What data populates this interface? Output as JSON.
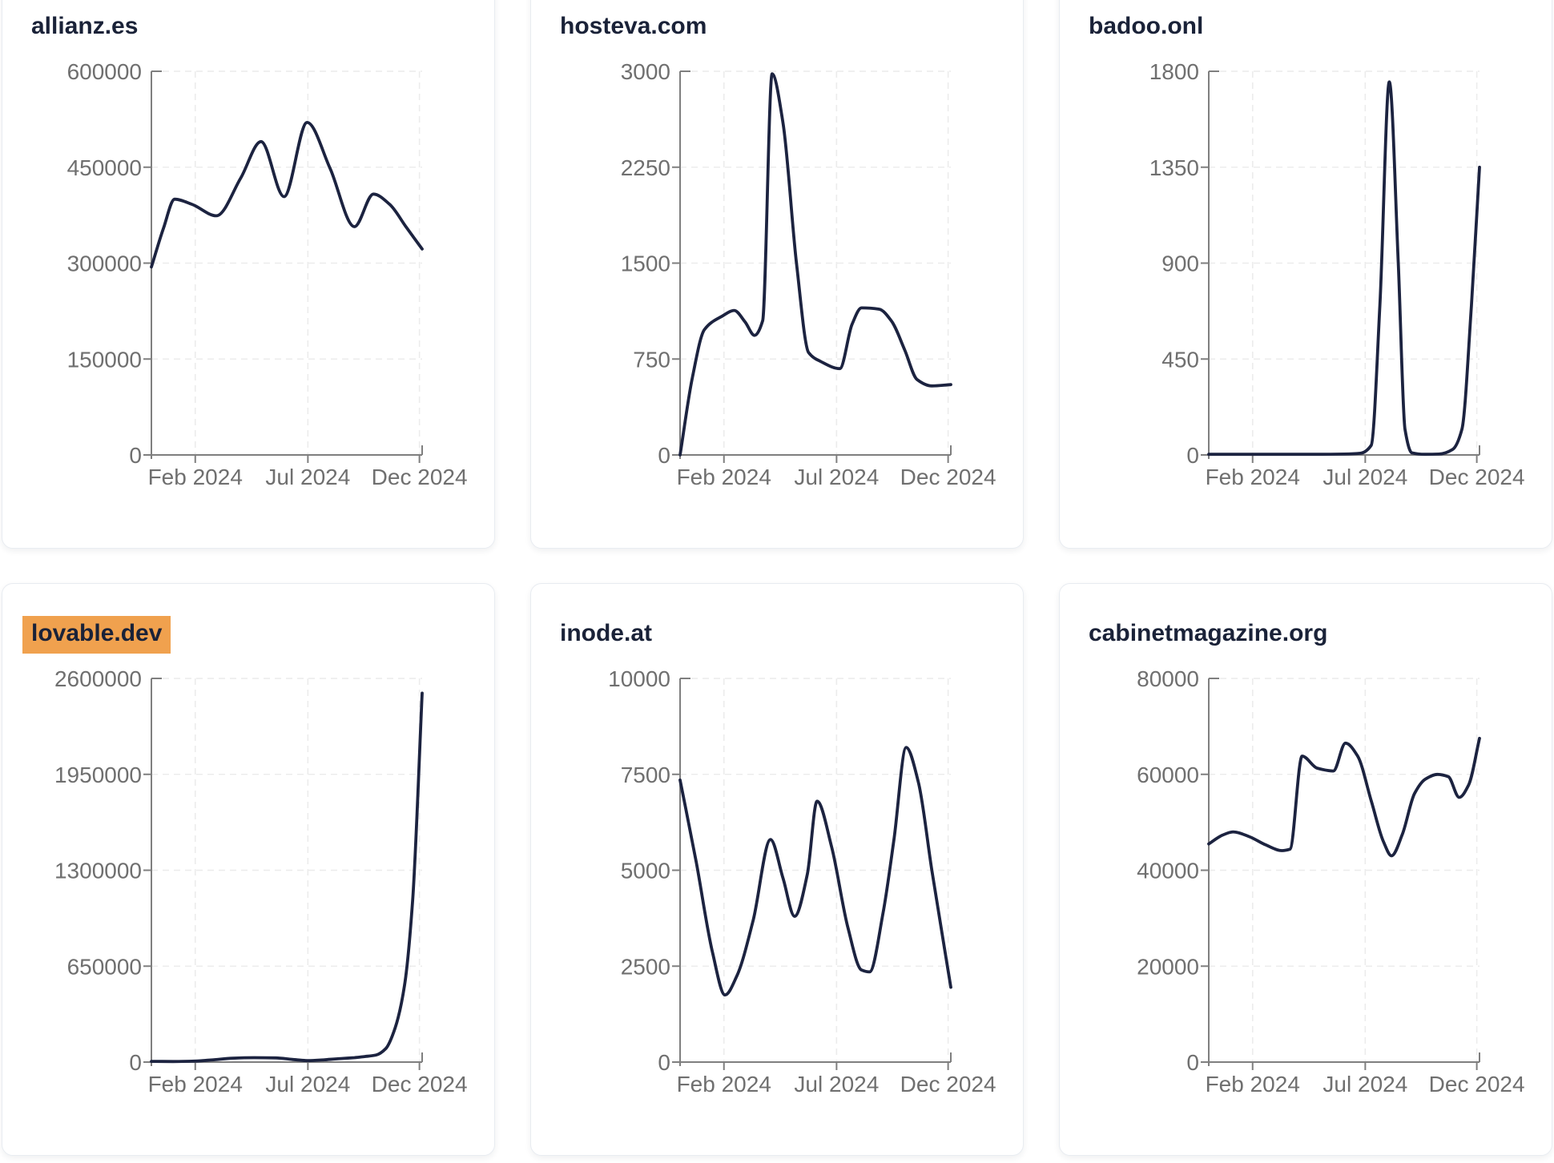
{
  "page": {
    "background": "#ffffff",
    "description": "Dashboard grid of six domain traffic line charts, Jan 2024 - Dec 2024"
  },
  "colors": {
    "line": "#1c2340",
    "title": "#1a2238",
    "tick_label": "#6f6f6f",
    "axis": "#7f7f7f",
    "grid": "#ececec",
    "card_border": "#e8ecf1",
    "card_background": "#ffffff",
    "highlight_background": "#f0a14e"
  },
  "x_axis": {
    "domain": "Jan 2024 - Dec 2024",
    "ticks": [
      {
        "label": "Feb 2024",
        "t": 0.162
      },
      {
        "label": "Jul 2024",
        "t": 0.578
      },
      {
        "label": "Dec 2024",
        "t": 0.99
      }
    ]
  },
  "chart_data": [
    {
      "type": "line",
      "title": "allianz.es",
      "highlighted": false,
      "ylim": [
        0,
        600000
      ],
      "y_ticks": [
        600000,
        450000,
        300000,
        150000,
        0
      ],
      "x_tick_labels": [
        "Feb 2024",
        "Jul 2024",
        "Dec 2024"
      ],
      "grid": true,
      "points": [
        [
          0,
          294000
        ],
        [
          0.045,
          355000
        ],
        [
          0.086,
          400000
        ],
        [
          0.15,
          392000
        ],
        [
          0.24,
          374000
        ],
        [
          0.33,
          433000
        ],
        [
          0.405,
          490000
        ],
        [
          0.49,
          404000
        ],
        [
          0.575,
          520000
        ],
        [
          0.66,
          448000
        ],
        [
          0.75,
          357000
        ],
        [
          0.82,
          408000
        ],
        [
          0.88,
          392000
        ],
        [
          0.94,
          357000
        ],
        [
          1,
          322000
        ]
      ]
    },
    {
      "type": "line",
      "title": "hosteva.com",
      "highlighted": false,
      "ylim": [
        0,
        3000
      ],
      "y_ticks": [
        3000,
        2250,
        1500,
        750,
        0
      ],
      "x_tick_labels": [
        "Feb 2024",
        "Jul 2024",
        "Dec 2024"
      ],
      "grid": true,
      "points": [
        [
          0,
          0
        ],
        [
          0.045,
          600
        ],
        [
          0.09,
          980
        ],
        [
          0.155,
          1085
        ],
        [
          0.2,
          1130
        ],
        [
          0.24,
          1040
        ],
        [
          0.275,
          935
        ],
        [
          0.305,
          1050
        ],
        [
          0.34,
          2980
        ],
        [
          0.38,
          2600
        ],
        [
          0.43,
          1500
        ],
        [
          0.475,
          800
        ],
        [
          0.52,
          730
        ],
        [
          0.59,
          675
        ],
        [
          0.635,
          1020
        ],
        [
          0.67,
          1150
        ],
        [
          0.735,
          1140
        ],
        [
          0.78,
          1050
        ],
        [
          0.83,
          820
        ],
        [
          0.875,
          590
        ],
        [
          0.93,
          540
        ],
        [
          1,
          550
        ]
      ]
    },
    {
      "type": "line",
      "title": "badoo.onl",
      "highlighted": false,
      "ylim": [
        0,
        1800
      ],
      "y_ticks": [
        1800,
        1350,
        900,
        450,
        0
      ],
      "x_tick_labels": [
        "Feb 2024",
        "Jul 2024",
        "Dec 2024"
      ],
      "grid": true,
      "points": [
        [
          0,
          3
        ],
        [
          0.1,
          3
        ],
        [
          0.2,
          3
        ],
        [
          0.3,
          3
        ],
        [
          0.4,
          3
        ],
        [
          0.5,
          4
        ],
        [
          0.56,
          8
        ],
        [
          0.6,
          45
        ],
        [
          0.632,
          700
        ],
        [
          0.667,
          1750
        ],
        [
          0.7,
          900
        ],
        [
          0.725,
          120
        ],
        [
          0.75,
          10
        ],
        [
          0.8,
          3
        ],
        [
          0.85,
          4
        ],
        [
          0.9,
          25
        ],
        [
          0.935,
          120
        ],
        [
          0.97,
          700
        ],
        [
          1,
          1350
        ]
      ]
    },
    {
      "type": "line",
      "title": "lovable.dev",
      "highlighted": true,
      "ylim": [
        0,
        2600000
      ],
      "y_ticks": [
        2600000,
        1950000,
        1300000,
        650000,
        0
      ],
      "x_tick_labels": [
        "Feb 2024",
        "Jul 2024",
        "Dec 2024"
      ],
      "grid": true,
      "points": [
        [
          0,
          5000
        ],
        [
          0.08,
          4000
        ],
        [
          0.15,
          6000
        ],
        [
          0.22,
          14000
        ],
        [
          0.3,
          26000
        ],
        [
          0.38,
          30000
        ],
        [
          0.46,
          28000
        ],
        [
          0.52,
          18000
        ],
        [
          0.58,
          10000
        ],
        [
          0.64,
          16000
        ],
        [
          0.7,
          24000
        ],
        [
          0.75,
          30000
        ],
        [
          0.79,
          38000
        ],
        [
          0.83,
          48000
        ],
        [
          0.865,
          90000
        ],
        [
          0.9,
          230000
        ],
        [
          0.935,
          520000
        ],
        [
          0.965,
          1100000
        ],
        [
          1,
          2500000
        ]
      ]
    },
    {
      "type": "line",
      "title": "inode.at",
      "highlighted": false,
      "ylim": [
        0,
        10000
      ],
      "y_ticks": [
        10000,
        7500,
        5000,
        2500,
        0
      ],
      "x_tick_labels": [
        "Feb 2024",
        "Jul 2024",
        "Dec 2024"
      ],
      "grid": true,
      "points": [
        [
          0,
          7350
        ],
        [
          0.06,
          5200
        ],
        [
          0.12,
          2850
        ],
        [
          0.166,
          1750
        ],
        [
          0.21,
          2250
        ],
        [
          0.27,
          3700
        ],
        [
          0.334,
          5800
        ],
        [
          0.38,
          4800
        ],
        [
          0.423,
          3800
        ],
        [
          0.47,
          4900
        ],
        [
          0.506,
          6800
        ],
        [
          0.56,
          5600
        ],
        [
          0.62,
          3500
        ],
        [
          0.67,
          2400
        ],
        [
          0.7,
          2350
        ],
        [
          0.75,
          3900
        ],
        [
          0.79,
          5800
        ],
        [
          0.835,
          8200
        ],
        [
          0.88,
          7300
        ],
        [
          0.93,
          5000
        ],
        [
          1,
          1950
        ]
      ]
    },
    {
      "type": "line",
      "title": "cabinetmagazine.org",
      "highlighted": false,
      "ylim": [
        0,
        80000
      ],
      "y_ticks": [
        80000,
        60000,
        40000,
        20000,
        0
      ],
      "x_tick_labels": [
        "Feb 2024",
        "Jul 2024",
        "Dec 2024"
      ],
      "grid": true,
      "points": [
        [
          0,
          45500
        ],
        [
          0.05,
          47300
        ],
        [
          0.09,
          48000
        ],
        [
          0.15,
          47000
        ],
        [
          0.21,
          45300
        ],
        [
          0.27,
          44100
        ],
        [
          0.3,
          44400
        ],
        [
          0.345,
          63800
        ],
        [
          0.4,
          61300
        ],
        [
          0.46,
          60700
        ],
        [
          0.505,
          66500
        ],
        [
          0.55,
          63800
        ],
        [
          0.6,
          54500
        ],
        [
          0.645,
          46000
        ],
        [
          0.675,
          43000
        ],
        [
          0.715,
          47500
        ],
        [
          0.76,
          56000
        ],
        [
          0.8,
          59000
        ],
        [
          0.845,
          60000
        ],
        [
          0.885,
          59500
        ],
        [
          0.925,
          55200
        ],
        [
          0.96,
          57800
        ],
        [
          1,
          67500
        ]
      ]
    }
  ]
}
